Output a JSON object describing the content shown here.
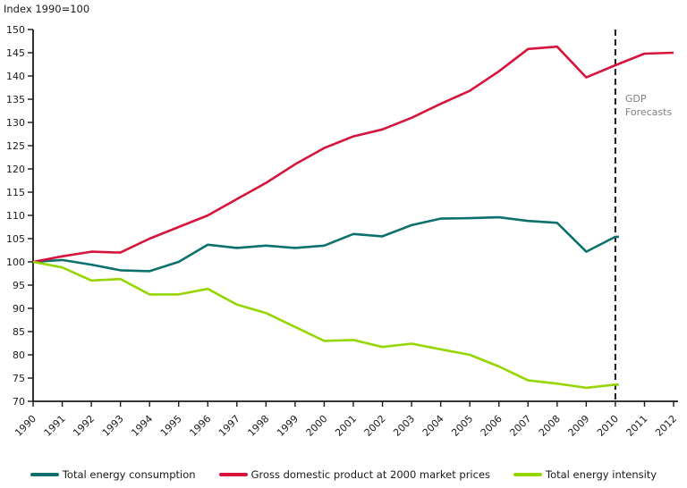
{
  "title": "Index 1990=100",
  "annotation": {
    "lines": [
      "GDP",
      "Forecasts"
    ],
    "color": "#7f7f7f"
  },
  "colors": {
    "axis": "#1a1a1a",
    "tick_text": "#1a1a1a",
    "forecast_line": "#1a1a1a",
    "background": "#ffffff"
  },
  "legend": [
    {
      "label": "Total energy consumption",
      "color": "#0c716d"
    },
    {
      "label": "Gross domestic product at 2000 market prices",
      "color": "#d6143c"
    },
    {
      "label": "Total energy intensity",
      "color": "#96d600"
    }
  ],
  "chart_data": {
    "type": "line",
    "title": "Index 1990=100",
    "xlabel": "",
    "ylabel": "Index 1990=100",
    "x": [
      1990,
      1991,
      1992,
      1993,
      1994,
      1995,
      1996,
      1997,
      1998,
      1999,
      2000,
      2001,
      2002,
      2003,
      2004,
      2005,
      2006,
      2007,
      2008,
      2009,
      2010,
      2011,
      2012
    ],
    "ylim": [
      70,
      150
    ],
    "ytick_step": 5,
    "grid": false,
    "legend_position": "bottom",
    "forecast_divider_x": 2010,
    "series": [
      {
        "name": "Total energy consumption",
        "color": "#0c716d",
        "values": [
          100,
          100.4,
          99.4,
          98.2,
          98,
          100,
          103.7,
          103,
          103.5,
          103,
          103.5,
          106,
          105.5,
          107.9,
          109.3,
          109.4,
          109.6,
          108.8,
          108.4,
          102.2,
          105.4,
          null,
          null
        ]
      },
      {
        "name": "Gross domestic product at 2000 market prices",
        "color": "#d6143c",
        "values": [
          100,
          101.2,
          102.2,
          102,
          105,
          107.5,
          110,
          113.5,
          117,
          121,
          124.5,
          127,
          128.5,
          131,
          134,
          136.8,
          141,
          145.8,
          146.3,
          139.7,
          142.3,
          144.8,
          145
        ]
      },
      {
        "name": "Total energy intensity",
        "color": "#96d600",
        "values": [
          100,
          98.8,
          96,
          96.3,
          93,
          93,
          94.2,
          90.8,
          89,
          86,
          83,
          83.2,
          81.7,
          82.4,
          81.2,
          80,
          77.5,
          74.5,
          73.8,
          72.9,
          73.6,
          null,
          null
        ]
      }
    ]
  }
}
